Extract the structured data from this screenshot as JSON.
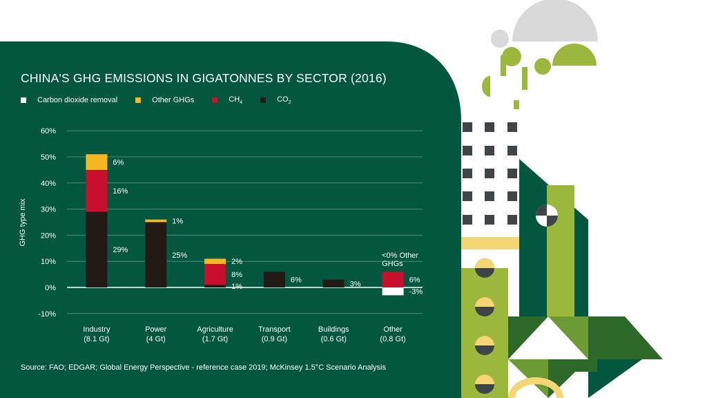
{
  "title": "CHINA'S GHG EMISSIONS IN GIGATONNES BY SECTOR (2016)",
  "legend": [
    {
      "label": "Carbon dioxide removal",
      "sub": "",
      "color": "#ffffff"
    },
    {
      "label": "Other GHGs",
      "sub": "",
      "color": "#f5b824"
    },
    {
      "label": "CH",
      "sub": "4",
      "color": "#c8102e"
    },
    {
      "label": "CO",
      "sub": "2",
      "color": "#231a16"
    }
  ],
  "source": "Source: FAO; EDGAR; Global Energy Perspective - reference case 2019; McKinsey 1.5°C Scenario Analysis",
  "colors": {
    "panel": "#04573f",
    "co2": "#231a16",
    "ch4": "#c8102e",
    "other": "#f5b824",
    "removal": "#ffffff",
    "grid": "#4f8a74"
  },
  "chart_data": {
    "type": "bar",
    "stacked": true,
    "title": "CHINA'S GHG EMISSIONS IN GIGATONNES BY SECTOR (2016)",
    "ylabel": "GHG type mix",
    "ylim": [
      -10,
      60
    ],
    "yticks": [
      "60%",
      "50%",
      "40%",
      "30%",
      "20%",
      "10%",
      "0%",
      "-10%"
    ],
    "ytick_values": [
      60,
      50,
      40,
      30,
      20,
      10,
      0,
      -10
    ],
    "grid": true,
    "legend_position": "top-left",
    "categories": [
      {
        "name": "Industry",
        "sub": "(8.1 Gt)"
      },
      {
        "name": "Power",
        "sub": "(4 Gt)"
      },
      {
        "name": "Agriculture",
        "sub": "(1.7 Gt)"
      },
      {
        "name": "Transport",
        "sub": "(0.9 Gt)"
      },
      {
        "name": "Buildings",
        "sub": "(0.6 Gt)"
      },
      {
        "name": "Other",
        "sub": "(0.8 Gt)"
      }
    ],
    "series": [
      {
        "name": "CO2",
        "values": [
          29,
          25,
          1,
          6,
          3,
          0
        ],
        "labels": [
          "29%",
          "25%",
          "1%",
          "6%",
          "3%",
          ""
        ]
      },
      {
        "name": "CH4",
        "values": [
          16,
          0,
          8,
          0,
          0,
          6
        ],
        "labels": [
          "16%",
          "",
          "8%",
          "",
          "",
          "6%"
        ]
      },
      {
        "name": "Other GHGs",
        "values": [
          6,
          1,
          2,
          0,
          0,
          0
        ],
        "labels": [
          "6%",
          "1%",
          "2%",
          "",
          "",
          ""
        ]
      },
      {
        "name": "Carbon dioxide removal",
        "values": [
          0,
          0,
          0,
          0,
          0,
          -3
        ],
        "labels": [
          "",
          "",
          "",
          "",
          "",
          "-3%"
        ]
      }
    ],
    "annotations": [
      {
        "category": "Other",
        "text_lines": [
          "<0% Other",
          "GHGs"
        ]
      }
    ]
  }
}
